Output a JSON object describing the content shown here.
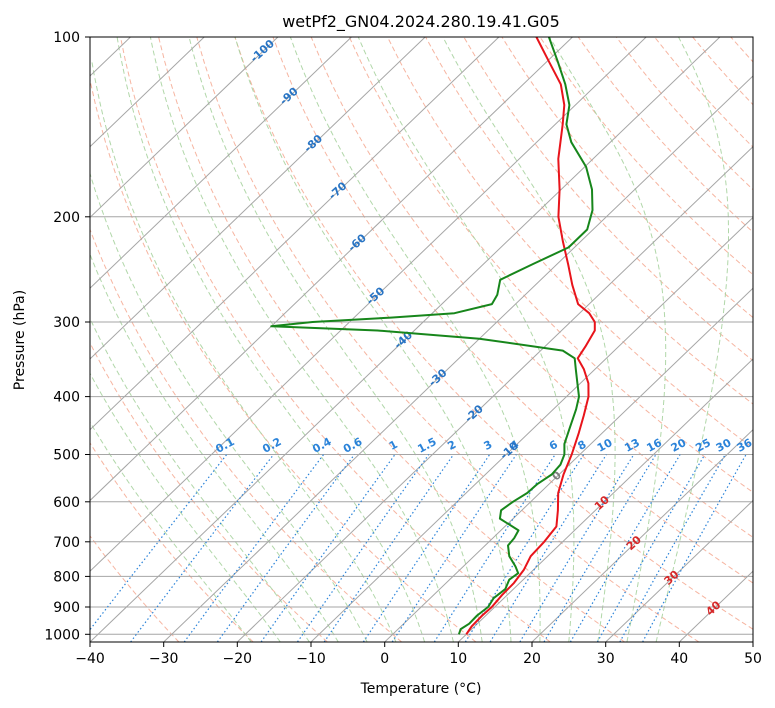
{
  "chart_data": {
    "type": "line",
    "subtype": "skew-t log-p diagram",
    "title": "wetPf2_GN04.2024.280.19.41.G05",
    "xlabel": "Temperature (°C)",
    "ylabel": "Pressure (hPa)",
    "xlim": [
      -40,
      50
    ],
    "ylim": [
      1030,
      100
    ],
    "y_scale": "log",
    "x_ticks": [
      -40,
      -30,
      -20,
      -10,
      0,
      10,
      20,
      30,
      40,
      50
    ],
    "y_ticks": [
      1000,
      900,
      800,
      700,
      600,
      500,
      400,
      300,
      200,
      100
    ],
    "grid": true,
    "colors": {
      "temperature": "#e8141b",
      "dewpoint": "#17861b",
      "isotherm": "#a6a6a6",
      "isobar": "#a6a6a6",
      "dry_adiabat": "#f4a38a",
      "moist_adiabat": "#a8d3a0",
      "mixing_ratio": "#2b83d9",
      "isotherm_label": "#2874c4",
      "theta_label": "#d62728",
      "zero_label": "#7f7f7f"
    },
    "series": [
      {
        "name": "",
        "color": "#e8141b",
        "points": [
          {
            "p": 1000,
            "t": 10.0
          },
          {
            "p": 970,
            "t": 9.6
          },
          {
            "p": 930,
            "t": 9.5
          },
          {
            "p": 900,
            "t": 9.6
          },
          {
            "p": 860,
            "t": 9.3
          },
          {
            "p": 820,
            "t": 9.2
          },
          {
            "p": 780,
            "t": 8.7
          },
          {
            "p": 740,
            "t": 7.7
          },
          {
            "p": 700,
            "t": 7.5
          },
          {
            "p": 660,
            "t": 7.0
          },
          {
            "p": 620,
            "t": 4.9
          },
          {
            "p": 580,
            "t": 2.5
          },
          {
            "p": 540,
            "t": 0.6
          },
          {
            "p": 500,
            "t": -1.1
          },
          {
            "p": 460,
            "t": -3.2
          },
          {
            "p": 430,
            "t": -5.0
          },
          {
            "p": 400,
            "t": -7.0
          },
          {
            "p": 380,
            "t": -8.9
          },
          {
            "p": 360,
            "t": -11.5
          },
          {
            "p": 345,
            "t": -13.9
          },
          {
            "p": 330,
            "t": -14.5
          },
          {
            "p": 310,
            "t": -15.5
          },
          {
            "p": 300,
            "t": -16.7
          },
          {
            "p": 290,
            "t": -18.7
          },
          {
            "p": 280,
            "t": -21.5
          },
          {
            "p": 260,
            "t": -25.0
          },
          {
            "p": 240,
            "t": -28.5
          },
          {
            "p": 220,
            "t": -32.4
          },
          {
            "p": 200,
            "t": -36.5
          },
          {
            "p": 180,
            "t": -40.2
          },
          {
            "p": 160,
            "t": -44.7
          },
          {
            "p": 140,
            "t": -49.0
          },
          {
            "p": 130,
            "t": -51.5
          },
          {
            "p": 120,
            "t": -54.9
          },
          {
            "p": 110,
            "t": -59.7
          },
          {
            "p": 100,
            "t": -64.9
          }
        ]
      },
      {
        "name": "",
        "color": "#17861b",
        "points": [
          {
            "p": 1000,
            "t": 9.0
          },
          {
            "p": 980,
            "t": 8.5
          },
          {
            "p": 960,
            "t": 8.9
          },
          {
            "p": 930,
            "t": 8.8
          },
          {
            "p": 900,
            "t": 9.1
          },
          {
            "p": 870,
            "t": 8.6
          },
          {
            "p": 840,
            "t": 8.9
          },
          {
            "p": 810,
            "t": 8.1
          },
          {
            "p": 790,
            "t": 8.4
          },
          {
            "p": 770,
            "t": 7.1
          },
          {
            "p": 740,
            "t": 4.8
          },
          {
            "p": 710,
            "t": 3.1
          },
          {
            "p": 690,
            "t": 2.9
          },
          {
            "p": 670,
            "t": 2.4
          },
          {
            "p": 640,
            "t": -1.8
          },
          {
            "p": 620,
            "t": -2.8
          },
          {
            "p": 600,
            "t": -2.4
          },
          {
            "p": 580,
            "t": -1.7
          },
          {
            "p": 560,
            "t": -1.6
          },
          {
            "p": 540,
            "t": -1.0
          },
          {
            "p": 520,
            "t": -1.2
          },
          {
            "p": 500,
            "t": -2.1
          },
          {
            "p": 480,
            "t": -3.6
          },
          {
            "p": 450,
            "t": -5.2
          },
          {
            "p": 420,
            "t": -6.9
          },
          {
            "p": 400,
            "t": -8.3
          },
          {
            "p": 380,
            "t": -10.4
          },
          {
            "p": 360,
            "t": -12.6
          },
          {
            "p": 345,
            "t": -14.3
          },
          {
            "p": 335,
            "t": -17.0
          },
          {
            "p": 320,
            "t": -30.0
          },
          {
            "p": 310,
            "t": -45.0
          },
          {
            "p": 305,
            "t": -60.0
          },
          {
            "p": 300,
            "t": -55.0
          },
          {
            "p": 295,
            "t": -45.0
          },
          {
            "p": 290,
            "t": -37.0
          },
          {
            "p": 280,
            "t": -33.2
          },
          {
            "p": 270,
            "t": -33.8
          },
          {
            "p": 255,
            "t": -35.5
          },
          {
            "p": 240,
            "t": -33.3
          },
          {
            "p": 225,
            "t": -30.8
          },
          {
            "p": 210,
            "t": -30.8
          },
          {
            "p": 195,
            "t": -32.8
          },
          {
            "p": 180,
            "t": -35.8
          },
          {
            "p": 165,
            "t": -39.8
          },
          {
            "p": 150,
            "t": -45.3
          },
          {
            "p": 140,
            "t": -48.5
          },
          {
            "p": 130,
            "t": -50.8
          },
          {
            "p": 120,
            "t": -54.3
          },
          {
            "p": 110,
            "t": -58.5
          },
          {
            "p": 100,
            "t": -63.2
          }
        ]
      }
    ],
    "isotherm_labels": [
      -100,
      -90,
      -80,
      -70,
      -60,
      -50,
      -40,
      -30,
      -20,
      -10
    ],
    "mixing_ratio_labels": [
      "0.1",
      "0.2",
      "0.4",
      "0.6",
      "1",
      "1.5",
      "2",
      "3",
      "4",
      "6",
      "8",
      "10",
      "13",
      "16",
      "20",
      "25",
      "30",
      "36"
    ],
    "mixing_ratio_values": [
      0.1,
      0.2,
      0.4,
      0.6,
      1,
      1.5,
      2,
      3,
      4,
      6,
      8,
      10,
      13,
      16,
      20,
      25,
      30,
      36
    ],
    "theta_labels": [
      "10",
      "20",
      "30",
      "40"
    ],
    "zero_label": "0"
  }
}
